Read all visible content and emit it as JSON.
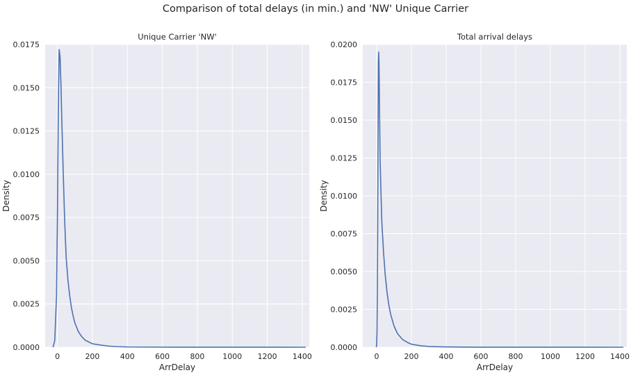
{
  "figure": {
    "suptitle": "Comparison of total delays (in min.) and 'NW' Unique Carrier"
  },
  "style": {
    "background": "#eaeaf2",
    "grid_color": "#ffffff",
    "line_color": "#4c72b0",
    "text_color": "#262626"
  },
  "chart_data": [
    {
      "type": "line",
      "title": "Unique Carrier 'NW'",
      "xlabel": "ArrDelay",
      "ylabel": "Density",
      "xlim": [
        -70,
        1440
      ],
      "ylim": [
        0,
        0.0175
      ],
      "xticks": [
        0,
        200,
        400,
        600,
        800,
        1000,
        1200,
        1400
      ],
      "yticks": [
        0.0,
        0.0025,
        0.005,
        0.0075,
        0.01,
        0.0125,
        0.015,
        0.0175
      ],
      "ytick_labels": [
        "0.0000",
        "0.0025",
        "0.0050",
        "0.0075",
        "0.0100",
        "0.0125",
        "0.0150",
        "0.0175"
      ],
      "grid": true,
      "series": [
        {
          "x": [
            -25,
            -15,
            -5,
            0,
            5,
            10,
            15,
            20,
            25,
            30,
            35,
            40,
            45,
            50,
            60,
            70,
            80,
            90,
            100,
            120,
            140,
            160,
            180,
            200,
            250,
            300,
            350,
            400,
            500,
            600,
            800,
            1000,
            1200,
            1420
          ],
          "y": [
            0.0,
            0.0004,
            0.003,
            0.0075,
            0.0135,
            0.0172,
            0.0168,
            0.0153,
            0.0132,
            0.0113,
            0.0095,
            0.0078,
            0.0064,
            0.0052,
            0.0039,
            0.003,
            0.0023,
            0.0018,
            0.0014,
            0.0009,
            0.0006,
            0.0004,
            0.0003,
            0.0002,
            0.00012,
            6e-05,
            3e-05,
            1.5e-05,
            1e-05,
            5e-06,
            3e-06,
            2e-06,
            1e-06,
            0.0
          ]
        }
      ]
    },
    {
      "type": "line",
      "title": "Total arrival delays",
      "xlabel": "ArrDelay",
      "ylabel": "Density",
      "xlim": [
        -80,
        1440
      ],
      "ylim": [
        0,
        0.02
      ],
      "xticks": [
        0,
        200,
        400,
        600,
        800,
        1000,
        1200,
        1400
      ],
      "yticks": [
        0.0,
        0.0025,
        0.005,
        0.0075,
        0.01,
        0.0125,
        0.015,
        0.0175,
        0.02
      ],
      "ytick_labels": [
        "0.0000",
        "0.0025",
        "0.0050",
        "0.0075",
        "0.0100",
        "0.0125",
        "0.0150",
        "0.0175",
        "0.0200"
      ],
      "grid": true,
      "series": [
        {
          "x": [
            -2,
            0,
            2,
            4,
            6,
            8,
            10,
            12,
            14,
            16,
            18,
            20,
            25,
            30,
            40,
            50,
            60,
            70,
            80,
            100,
            120,
            150,
            180,
            200,
            250,
            300,
            350,
            400,
            500,
            600,
            800,
            1000,
            1200,
            1420
          ],
          "y": [
            0.0,
            0.0002,
            0.001,
            0.0035,
            0.008,
            0.0135,
            0.0188,
            0.0195,
            0.0185,
            0.0163,
            0.0142,
            0.0123,
            0.0102,
            0.0082,
            0.0062,
            0.0047,
            0.0036,
            0.0028,
            0.0022,
            0.0014,
            0.0009,
            0.0005,
            0.0003,
            0.0002,
            0.0001,
            5e-05,
            3e-05,
            2e-05,
            1e-05,
            5e-06,
            3e-06,
            2e-06,
            1e-06,
            0.0
          ]
        }
      ]
    }
  ]
}
